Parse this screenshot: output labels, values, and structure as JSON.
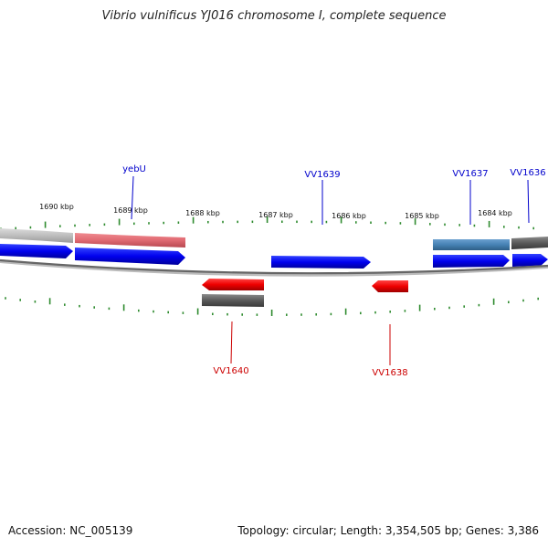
{
  "title": "Vibrio vulnificus YJ016 chromosome I, complete sequence",
  "footer": {
    "accession": "Accession: NC_005139",
    "summary": "Topology: circular; Length: 3,354,505 bp; Genes: 3,386"
  },
  "kbp_labels": [
    "1690 kbp",
    "1689 kbp",
    "1688 kbp",
    "1687 kbp",
    "1686 kbp",
    "1685 kbp",
    "1684 kbp"
  ],
  "genes_forward": [
    {
      "label": "yebU",
      "color": "#0000cc"
    },
    {
      "label": "VV1639",
      "color": "#0000cc"
    },
    {
      "label": "VV1637",
      "color": "#0000cc"
    },
    {
      "label": "VV1636",
      "color": "#0000cc"
    }
  ],
  "genes_reverse": [
    {
      "label": "VV1640",
      "color": "#cc0000"
    },
    {
      "label": "VV1638",
      "color": "#cc0000"
    }
  ],
  "colors": {
    "forward_cds": "#0000ee",
    "reverse_cds": "#ee0000",
    "backbone": "#666666",
    "tick": "#2e8b2e",
    "gene_gray": "#5a5a5a",
    "gene_lightgray": "#bdbdbd",
    "gene_pink": "#e06a72",
    "gene_steel": "#4682b4"
  }
}
